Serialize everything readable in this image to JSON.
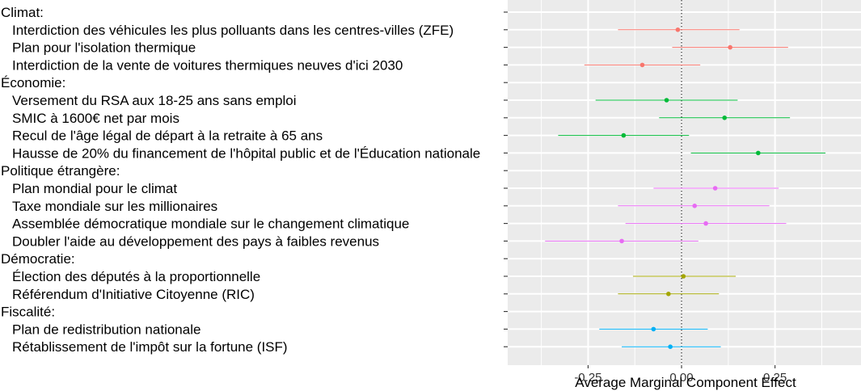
{
  "chart_data": {
    "type": "scatter",
    "subtype": "dot-and-whisker",
    "xlabel": "Average Marginal Component Effect",
    "xlim": [
      -0.465,
      0.48
    ],
    "xticks": [
      -0.25,
      0.0,
      0.25
    ],
    "xtick_labels": [
      "-0.25",
      "0.00",
      "0.25"
    ],
    "reference_line": 0,
    "grid": true,
    "legend": "none",
    "groups": [
      {
        "label": "Climat:",
        "color": "#F8766D",
        "items": [
          {
            "label": "Interdiction des véhicules les plus polluants dans les centres-villes (ZFE)",
            "estimate": -0.01,
            "low": -0.17,
            "high": 0.155
          },
          {
            "label": "Plan pour l'isolation thermique",
            "estimate": 0.13,
            "low": -0.025,
            "high": 0.285
          },
          {
            "label": "Interdiction de la vente de voitures thermiques neuves d'ici 2030",
            "estimate": -0.105,
            "low": -0.26,
            "high": 0.05
          }
        ]
      },
      {
        "label": "Économie:",
        "color": "#00BA38",
        "items": [
          {
            "label": "Versement du RSA aux 18-25 ans sans emploi",
            "estimate": -0.04,
            "low": -0.23,
            "high": 0.15
          },
          {
            "label": "SMIC à 1600€ net par mois",
            "estimate": 0.115,
            "low": -0.06,
            "high": 0.29
          },
          {
            "label": "Recul de l'âge légal de départ à la retraite à 65 ans",
            "estimate": -0.155,
            "low": -0.33,
            "high": 0.02
          },
          {
            "label": "Hausse de 20% du financement de l'hôpital public et de l'Éducation nationale",
            "estimate": 0.205,
            "low": 0.025,
            "high": 0.385
          }
        ]
      },
      {
        "label": "Politique étrangère:",
        "color": "#E76BF3",
        "items": [
          {
            "label": "Plan mondial pour le climat",
            "estimate": 0.09,
            "low": -0.075,
            "high": 0.26
          },
          {
            "label": "Taxe mondiale sur les millionaires",
            "estimate": 0.035,
            "low": -0.17,
            "high": 0.235
          },
          {
            "label": "Assemblée démocratique mondiale sur le changement climatique",
            "estimate": 0.065,
            "low": -0.15,
            "high": 0.28
          },
          {
            "label": "Doubler l'aide au développement des pays à faibles revenus",
            "estimate": -0.16,
            "low": -0.365,
            "high": 0.045
          }
        ]
      },
      {
        "label": "Démocratie:",
        "color": "#A3A500",
        "items": [
          {
            "label": "Élection des députés à la proportionnelle",
            "estimate": 0.005,
            "low": -0.13,
            "high": 0.145
          },
          {
            "label": "Référendum d'Initiative Citoyenne (RIC)",
            "estimate": -0.035,
            "low": -0.17,
            "high": 0.1
          }
        ]
      },
      {
        "label": "Fiscalité:",
        "color": "#00B0F6",
        "items": [
          {
            "label": "Plan de redistribution nationale",
            "estimate": -0.075,
            "low": -0.22,
            "high": 0.07
          },
          {
            "label": "Rétablissement de l'impôt sur la fortune (ISF)",
            "estimate": -0.03,
            "low": -0.16,
            "high": 0.105
          }
        ]
      }
    ]
  }
}
